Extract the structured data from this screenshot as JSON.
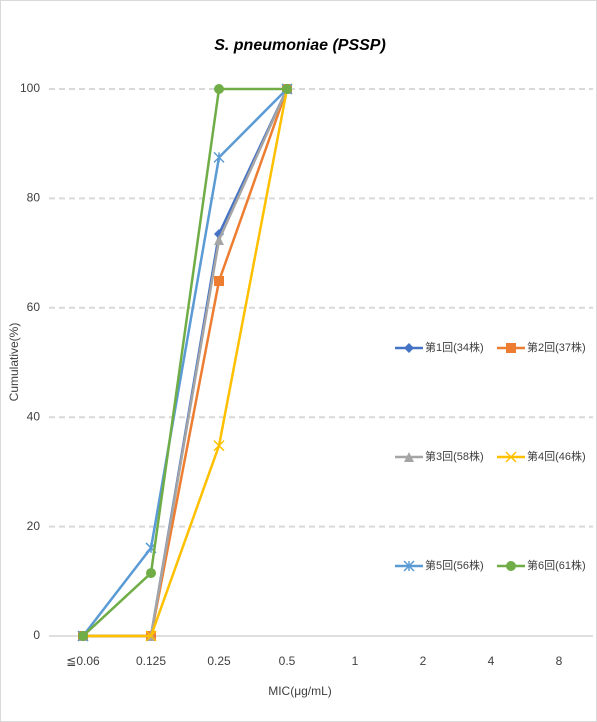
{
  "chart_data": {
    "type": "line",
    "title": "S. pneumoniae (PSSP)",
    "x_label": "MIC(μg/mL)",
    "y_label": "Cumulative(%)",
    "categories": [
      "≦0.06",
      "0.125",
      "0.25",
      "0.5",
      "1",
      "2",
      "4",
      "8"
    ],
    "ylim": [
      0,
      100
    ],
    "yticks": [
      0,
      20,
      40,
      60,
      80,
      100
    ],
    "grid": true,
    "legend": "right",
    "series": [
      {
        "name": "第1回(34株)",
        "color": "#4472c4",
        "marker": "diamond",
        "values": [
          0,
          0,
          73.5,
          100,
          null,
          null,
          null,
          null
        ]
      },
      {
        "name": "第2回(37株)",
        "color": "#ed7d31",
        "marker": "square",
        "values": [
          0,
          0,
          64.9,
          100,
          null,
          null,
          null,
          null
        ]
      },
      {
        "name": "第3回(58株)",
        "color": "#a5a5a5",
        "marker": "triangle",
        "values": [
          0,
          0,
          72.4,
          100,
          null,
          null,
          null,
          null
        ]
      },
      {
        "name": "第4回(46株)",
        "color": "#ffc000",
        "marker": "x",
        "values": [
          0,
          0,
          34.8,
          100,
          null,
          null,
          null,
          null
        ]
      },
      {
        "name": "第5回(56株)",
        "color": "#5b9bd5",
        "marker": "star",
        "values": [
          0,
          16.1,
          87.5,
          100,
          null,
          null,
          null,
          null
        ]
      },
      {
        "name": "第6回(61株)",
        "color": "#70ad47",
        "marker": "circle",
        "values": [
          0,
          11.5,
          100,
          100,
          null,
          null,
          null,
          null
        ]
      }
    ]
  }
}
